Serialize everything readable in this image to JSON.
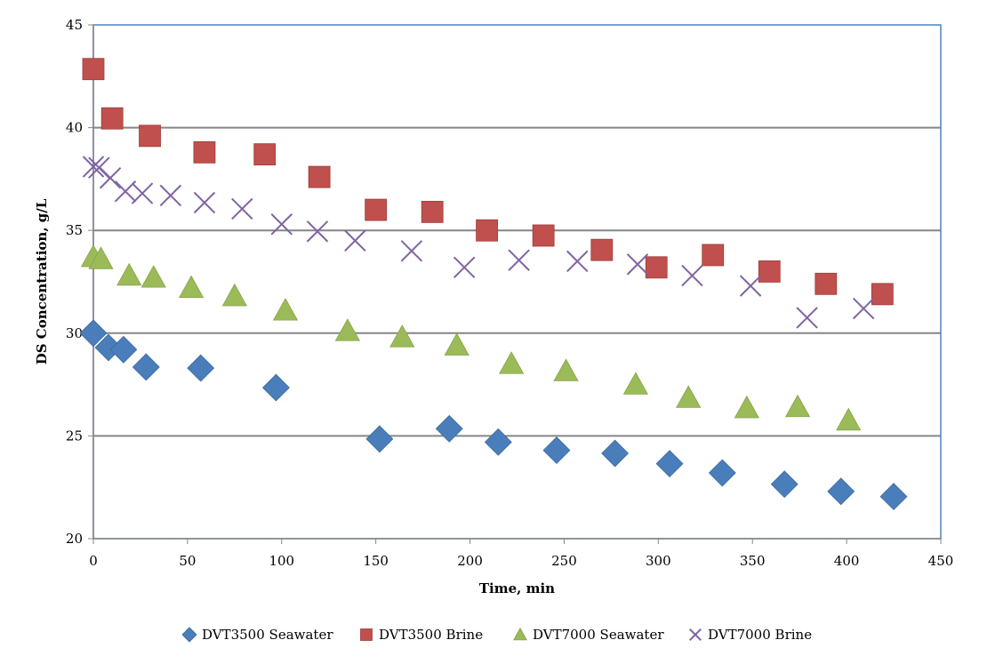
{
  "chart_data": {
    "type": "scatter",
    "title": "",
    "xlabel": "Time, min",
    "ylabel": "DS Concentration, g/L",
    "xlim": [
      0,
      450
    ],
    "ylim": [
      20,
      45
    ],
    "x_ticks": [
      "0",
      "50",
      "100",
      "150",
      "200",
      "250",
      "300",
      "350",
      "400",
      "450"
    ],
    "y_ticks": [
      "20",
      "25",
      "30",
      "35",
      "40",
      "45"
    ],
    "grid": "horizontal",
    "legend_position": "bottom",
    "series": [
      {
        "name": "DVT3500 Seawater",
        "marker": "diamond",
        "color": "#4a7ebb",
        "points": [
          [
            0,
            30.0
          ],
          [
            8,
            29.3
          ],
          [
            16,
            29.2
          ],
          [
            28,
            28.35
          ],
          [
            57,
            28.3
          ],
          [
            97,
            27.35
          ],
          [
            152,
            24.85
          ],
          [
            189,
            25.35
          ],
          [
            215,
            24.7
          ],
          [
            246,
            24.3
          ],
          [
            277,
            24.15
          ],
          [
            306,
            23.65
          ],
          [
            334,
            23.2
          ],
          [
            367,
            22.65
          ],
          [
            397,
            22.3
          ],
          [
            425,
            22.05
          ]
        ]
      },
      {
        "name": "DVT3500 Brine",
        "marker": "square",
        "color": "#c0504d",
        "points": [
          [
            0,
            42.85
          ],
          [
            10,
            40.45
          ],
          [
            30,
            39.6
          ],
          [
            59,
            38.8
          ],
          [
            91,
            38.7
          ],
          [
            120,
            37.6
          ],
          [
            150,
            36.0
          ],
          [
            180,
            35.9
          ],
          [
            209,
            35.0
          ],
          [
            239,
            34.75
          ],
          [
            270,
            34.05
          ],
          [
            299,
            33.2
          ],
          [
            329,
            33.8
          ],
          [
            359,
            33.0
          ],
          [
            389,
            32.4
          ],
          [
            419,
            31.9
          ]
        ]
      },
      {
        "name": "DVT7000 Seawater",
        "marker": "triangle",
        "color": "#9bbb59",
        "points": [
          [
            0,
            33.7
          ],
          [
            4,
            33.6
          ],
          [
            19,
            32.8
          ],
          [
            32,
            32.7
          ],
          [
            52,
            32.2
          ],
          [
            75,
            31.8
          ],
          [
            102,
            31.1
          ],
          [
            135,
            30.1
          ],
          [
            164,
            29.8
          ],
          [
            193,
            29.4
          ],
          [
            222,
            28.5
          ],
          [
            251,
            28.15
          ],
          [
            288,
            27.5
          ],
          [
            316,
            26.85
          ],
          [
            347,
            26.35
          ],
          [
            374,
            26.4
          ],
          [
            401,
            25.75
          ]
        ]
      },
      {
        "name": "DVT7000 Brine",
        "marker": "x",
        "color": "#8064a2",
        "points": [
          [
            0,
            38.1
          ],
          [
            3,
            38.05
          ],
          [
            9,
            37.55
          ],
          [
            17,
            36.9
          ],
          [
            26,
            36.8
          ],
          [
            41,
            36.7
          ],
          [
            59,
            36.35
          ],
          [
            79,
            36.05
          ],
          [
            100,
            35.3
          ],
          [
            119,
            34.95
          ],
          [
            139,
            34.5
          ],
          [
            169,
            34.0
          ],
          [
            197,
            33.2
          ],
          [
            226,
            33.55
          ],
          [
            257,
            33.5
          ],
          [
            289,
            33.35
          ],
          [
            318,
            32.8
          ],
          [
            349,
            32.3
          ],
          [
            379,
            30.75
          ],
          [
            409,
            31.2
          ]
        ]
      }
    ]
  }
}
